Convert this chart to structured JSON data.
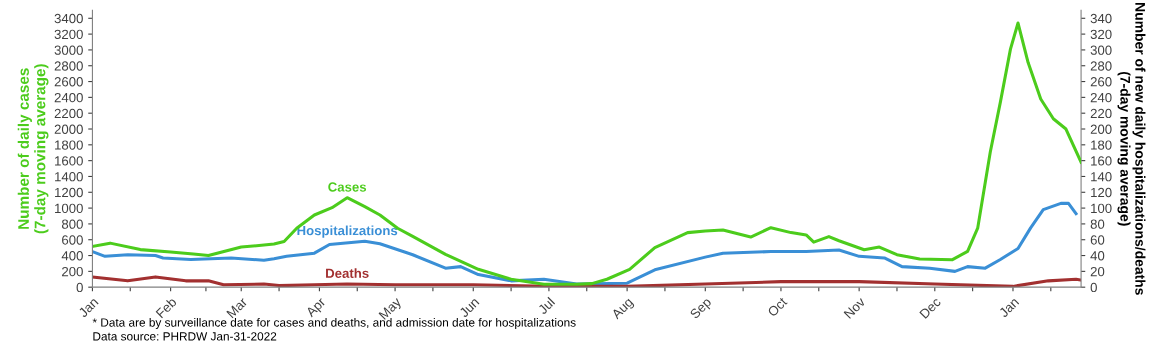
{
  "chart_data": {
    "type": "line",
    "ylabel": "Number of daily cases\n(7-day moving average)",
    "y2label": "Number of new daily hospitalizations/deaths\n(7-day moving average)",
    "annotations": [
      "* Data are by surveillance date for cases and deaths, and admission date for hospitalizations",
      "Data source: PHRDW Jan-31-2022"
    ],
    "xlim": [
      "2021-01-01",
      "2022-01-28"
    ],
    "xticks": [
      {
        "value": "2021-01-01",
        "label": "Jan"
      },
      {
        "value": "2021-01-16",
        "label": null
      },
      {
        "value": "2021-02-01",
        "label": "Feb"
      },
      {
        "value": "2021-02-15",
        "label": null
      },
      {
        "value": "2021-03-01",
        "label": "Mar"
      },
      {
        "value": "2021-03-16",
        "label": null
      },
      {
        "value": "2021-04-01",
        "label": "Apr"
      },
      {
        "value": "2021-04-16",
        "label": null
      },
      {
        "value": "2021-05-01",
        "label": "May"
      },
      {
        "value": "2021-05-16",
        "label": null
      },
      {
        "value": "2021-06-01",
        "label": "Jun"
      },
      {
        "value": "2021-06-16",
        "label": null
      },
      {
        "value": "2021-07-01",
        "label": "Jul"
      },
      {
        "value": "2021-07-16",
        "label": null
      },
      {
        "value": "2021-08-01",
        "label": "Aug"
      },
      {
        "value": "2021-08-16",
        "label": null
      },
      {
        "value": "2021-09-01",
        "label": "Sep"
      },
      {
        "value": "2021-09-16",
        "label": null
      },
      {
        "value": "2021-10-01",
        "label": "Oct"
      },
      {
        "value": "2021-10-16",
        "label": null
      },
      {
        "value": "2021-11-01",
        "label": "Nov"
      },
      {
        "value": "2021-11-16",
        "label": null
      },
      {
        "value": "2021-12-01",
        "label": "Dec"
      },
      {
        "value": "2021-12-16",
        "label": null
      },
      {
        "value": "2022-01-01",
        "label": "Jan"
      },
      {
        "value": "2022-01-16",
        "label": null
      }
    ],
    "ylim": [
      0,
      3500
    ],
    "yticks": [
      0,
      200,
      400,
      600,
      800,
      1000,
      1200,
      1400,
      1600,
      1800,
      2000,
      2200,
      2400,
      2600,
      2800,
      3000,
      3200,
      3400
    ],
    "y2lim": [
      0,
      350
    ],
    "y2ticks": [
      0,
      20,
      40,
      60,
      80,
      100,
      120,
      140,
      160,
      180,
      200,
      220,
      240,
      260,
      280,
      300,
      320,
      340
    ],
    "grid": false,
    "legend": false,
    "marker": "none",
    "line_style": "solid",
    "series": [
      {
        "name": "Cases",
        "color": "#4ccc1c",
        "x": [
          "2021-01-01",
          "2021-01-08",
          "2021-01-20",
          "2021-02-01",
          "2021-02-10",
          "2021-02-16",
          "2021-03-01",
          "2021-03-14",
          "2021-03-18",
          "2021-03-23",
          "2021-03-30",
          "2021-04-06",
          "2021-04-12",
          "2021-04-19",
          "2021-04-25",
          "2021-05-02",
          "2021-05-08",
          "2021-05-21",
          "2021-06-03",
          "2021-06-16",
          "2021-06-29",
          "2021-07-12",
          "2021-07-18",
          "2021-07-24",
          "2021-08-02",
          "2021-08-12",
          "2021-08-25",
          "2021-09-01",
          "2021-09-08",
          "2021-09-19",
          "2021-09-27",
          "2021-10-05",
          "2021-10-11",
          "2021-10-14",
          "2021-10-20",
          "2021-10-24",
          "2021-11-03",
          "2021-11-09",
          "2021-11-16",
          "2021-11-25",
          "2021-12-08",
          "2021-12-14",
          "2021-12-18",
          "2021-12-23",
          "2021-12-27",
          "2021-12-31",
          "2022-01-03",
          "2022-01-07",
          "2022-01-12",
          "2022-01-17",
          "2022-01-22",
          "2022-01-28"
        ],
        "values": [
          515,
          557,
          475,
          445,
          420,
          400,
          507,
          545,
          578,
          745,
          913,
          1005,
          1131,
          1018,
          913,
          745,
          642,
          415,
          226,
          100,
          38,
          38,
          45,
          100,
          226,
          500,
          690,
          710,
          723,
          634,
          752,
          690,
          660,
          570,
          640,
          587,
          474,
          507,
          411,
          356,
          348,
          453,
          746,
          1710,
          2340,
          3010,
          3340,
          2840,
          2380,
          2130,
          2000,
          1580
        ]
      },
      {
        "name": "Hospitalizations",
        "color": "#3a8fd6",
        "axis": "y2",
        "x": [
          "2021-01-01",
          "2021-01-06",
          "2021-01-15",
          "2021-01-26",
          "2021-01-29",
          "2021-02-09",
          "2021-02-17",
          "2021-02-25",
          "2021-03-10",
          "2021-03-14",
          "2021-03-19",
          "2021-03-30",
          "2021-04-05",
          "2021-04-19",
          "2021-04-25",
          "2021-05-08",
          "2021-05-21",
          "2021-05-27",
          "2021-06-03",
          "2021-06-16",
          "2021-06-29",
          "2021-07-12",
          "2021-08-01",
          "2021-08-12",
          "2021-09-01",
          "2021-09-08",
          "2021-09-27",
          "2021-10-11",
          "2021-10-24",
          "2021-11-01",
          "2021-11-11",
          "2021-11-18",
          "2021-11-29",
          "2021-12-09",
          "2021-12-14",
          "2021-12-21",
          "2021-12-27",
          "2022-01-03",
          "2022-01-08",
          "2022-01-13",
          "2022-01-20",
          "2022-01-23",
          "2022-01-26"
        ],
        "values": [
          45,
          39,
          41,
          40,
          37,
          35,
          36,
          37,
          34,
          36,
          39,
          43,
          54,
          58,
          55,
          41,
          24,
          26,
          16,
          8,
          10,
          4,
          5,
          22,
          38,
          43,
          45,
          45,
          47,
          39,
          37,
          26,
          24,
          20,
          26,
          24,
          35,
          49,
          75,
          98,
          106,
          106,
          93
        ]
      },
      {
        "name": "Deaths",
        "color": "#a23030",
        "axis": "y2",
        "x": [
          "2021-01-01",
          "2021-01-15",
          "2021-01-26",
          "2021-02-07",
          "2021-02-16",
          "2021-02-22",
          "2021-03-10",
          "2021-03-16",
          "2021-03-30",
          "2021-04-12",
          "2021-05-01",
          "2021-06-01",
          "2021-07-01",
          "2021-08-01",
          "2021-09-01",
          "2021-10-01",
          "2021-11-01",
          "2021-12-01",
          "2022-01-01",
          "2022-01-15",
          "2022-01-26",
          "2022-01-28"
        ],
        "values": [
          13,
          8,
          13,
          8,
          8,
          3,
          4,
          2,
          3,
          4,
          3,
          3,
          1,
          1,
          4,
          7,
          7,
          4,
          1,
          8,
          10,
          9
        ]
      }
    ]
  }
}
